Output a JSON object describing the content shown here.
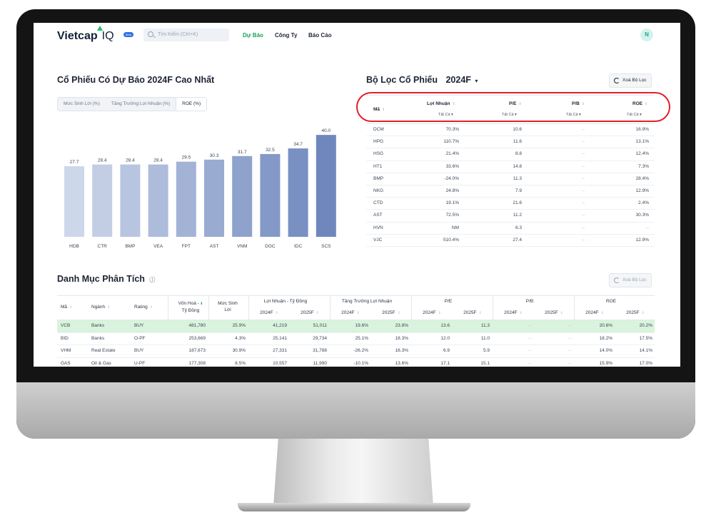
{
  "header": {
    "logo": "Vietcap",
    "logo_suffix": "IQ",
    "badge": "Beta",
    "search_placeholder": "Tìm Kiếm (Ctrl+K)",
    "nav": [
      "Dự Báo",
      "Công Ty",
      "Báo Cáo"
    ],
    "avatar": "N",
    "colors": {
      "accent": "#19c26b",
      "nav_active": "#19a05a"
    }
  },
  "top_stocks": {
    "title": "Cổ Phiếu Có Dự Báo 2024F Cao Nhất",
    "tabs": [
      "Mức Sinh Lời (%)",
      "Tăng Trưởng Lợi Nhuận (%)",
      "ROE (%)"
    ],
    "active_tab": "ROE (%)"
  },
  "chart_data": {
    "type": "bar",
    "categories": [
      "HDB",
      "CTR",
      "BMP",
      "VEA",
      "FPT",
      "AST",
      "VNM",
      "DGC",
      "IDC",
      "SCS"
    ],
    "values": [
      27.7,
      28.4,
      28.4,
      28.4,
      29.5,
      30.3,
      31.7,
      32.5,
      34.7,
      40.0
    ],
    "value_labels": [
      "27.7",
      "28.4",
      "28.4",
      "28.4",
      "29.5",
      "30.3",
      "31.7",
      "32.5",
      "34.7",
      "40.0"
    ],
    "ylim": [
      0,
      42
    ],
    "grid": false,
    "colors": {
      "low": "#cdd7ea",
      "high": "#6f87bd"
    }
  },
  "filter": {
    "title": "Bộ Lọc Cổ Phiếu",
    "year": "2024F",
    "clear_button": "Xoá Bộ Lọc",
    "columns": [
      "Mã",
      "Lợi Nhuận",
      "P/E",
      "P/B",
      "ROE"
    ],
    "select_all": "Tất Cả",
    "rows": [
      [
        "DCM",
        "70.3%",
        "10.6",
        "–",
        "16.9%"
      ],
      [
        "HPG",
        "110.7%",
        "11.6",
        "–",
        "13.1%"
      ],
      [
        "HSG",
        "21.4%",
        "8.8",
        "–",
        "12.4%"
      ],
      [
        "HT1",
        "33.6%",
        "14.8",
        "–",
        "7.3%"
      ],
      [
        "BMP",
        "-24.0%",
        "11.3",
        "–",
        "28.4%"
      ],
      [
        "NKG",
        "24.8%",
        "7.9",
        "–",
        "12.9%"
      ],
      [
        "CTD",
        "19.1%",
        "21.6",
        "–",
        "2.4%"
      ],
      [
        "AST",
        "72.5%",
        "11.2",
        "–",
        "30.3%"
      ],
      [
        "HVN",
        "NM",
        "6.3",
        "–",
        "–"
      ],
      [
        "VJC",
        "510.4%",
        "27.4",
        "–",
        "12.9%"
      ]
    ],
    "highlight_color": "#e31e2b"
  },
  "portfolio": {
    "title": "Danh Mục Phân Tích",
    "clear_button": "Xoá Bộ Lọc",
    "headers": {
      "ma": "Mã",
      "nganh": "Ngành",
      "rating": "Rating",
      "von_hoa_line1": "Vốn Hoá -",
      "von_hoa_line2": "Tỷ Đồng",
      "muc_sinh_line1": "Mức Sinh",
      "muc_sinh_line2": "Lời",
      "loi_nhuan": "Lợi Nhuận - Tỷ Đồng",
      "tang_truong": "Tăng Trưởng Lợi Nhuận",
      "pe": "P/E",
      "pb": "P/B",
      "roe": "ROE",
      "y2024": "2024F",
      "y2025": "2025F"
    },
    "rows": [
      [
        "VCB",
        "Banks",
        "BUY",
        "481,780",
        "25.9%",
        "41,219",
        "51,011",
        "19.6%",
        "23.8%",
        "13.6",
        "11.3",
        "–",
        "–",
        "20.6%",
        "20.2%"
      ],
      [
        "BID",
        "Banks",
        "O-PF",
        "253,669",
        "4.3%",
        "25,141",
        "29,734",
        "25.1%",
        "18.3%",
        "12.0",
        "11.0",
        "–",
        "–",
        "18.2%",
        "17.5%"
      ],
      [
        "VHM",
        "Real Estate",
        "BUY",
        "187,673",
        "30.9%",
        "27,331",
        "31,788",
        "-26.2%",
        "16.3%",
        "6.9",
        "5.9",
        "–",
        "–",
        "14.0%",
        "14.1%"
      ],
      [
        "GAS",
        "Oil & Gas",
        "U-PF",
        "177,308",
        "8.5%",
        "10,557",
        "11,990",
        "-10.1%",
        "13.6%",
        "17.1",
        "15.1",
        "–",
        "–",
        "15.9%",
        "17.0%"
      ]
    ],
    "highlight_color": "#d8f4dc"
  }
}
